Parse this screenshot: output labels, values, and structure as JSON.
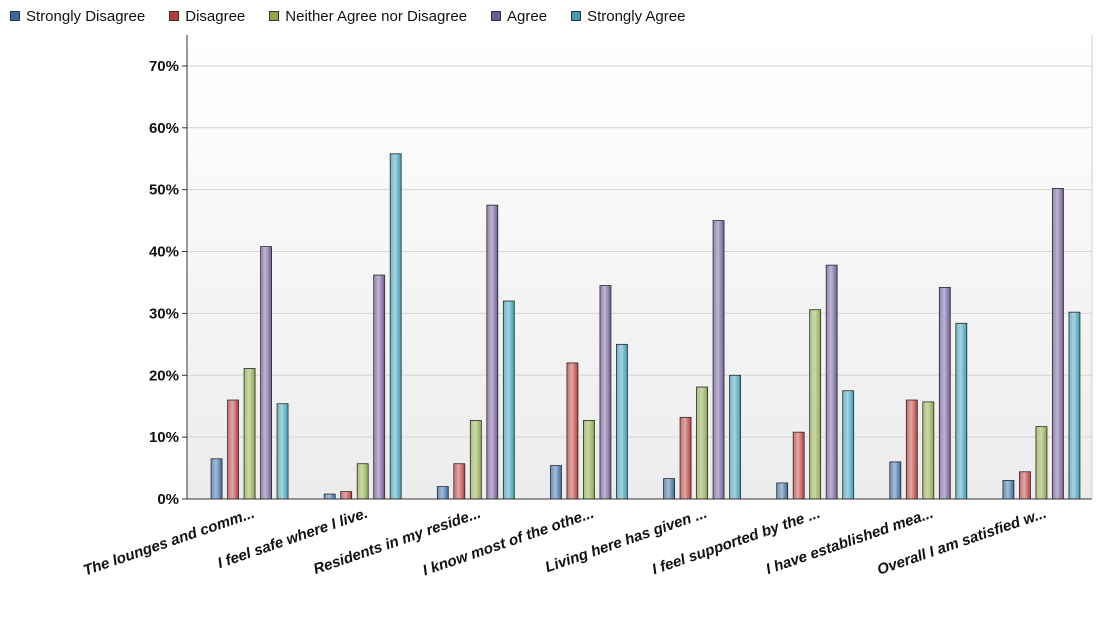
{
  "chart_data": {
    "type": "bar",
    "categories": [
      "The lounges and comm...",
      "I feel safe where I live.",
      "Residents in my reside...",
      "I know most of the othe...",
      "Living here has given ...",
      "I feel supported by the ...",
      "I have established mea...",
      "Overall I am satisfied w..."
    ],
    "series": [
      {
        "name": "Strongly Disagree",
        "color": "#3a6aa0",
        "values": [
          6.5,
          0.8,
          2.0,
          5.4,
          3.3,
          2.6,
          6.0,
          3.0
        ]
      },
      {
        "name": "Disagree",
        "color": "#b83c3c",
        "values": [
          16.0,
          1.2,
          5.7,
          22.0,
          13.2,
          10.8,
          16.0,
          4.4
        ]
      },
      {
        "name": "Neither Agree nor Disagree",
        "color": "#8ca848",
        "values": [
          21.1,
          5.7,
          12.7,
          12.7,
          18.1,
          30.6,
          15.7,
          11.7
        ]
      },
      {
        "name": "Agree",
        "color": "#6e5a96",
        "values": [
          40.8,
          36.2,
          47.5,
          34.5,
          45.0,
          37.8,
          34.2,
          50.2
        ]
      },
      {
        "name": "Strongly Agree",
        "color": "#3d9cb4",
        "values": [
          15.4,
          55.8,
          32.0,
          25.0,
          20.0,
          17.5,
          28.4,
          30.2
        ]
      }
    ],
    "y_ticks": [
      "0%",
      "10%",
      "20%",
      "30%",
      "40%",
      "50%",
      "60%",
      "70%"
    ],
    "ylim": [
      0,
      75
    ],
    "grid": true,
    "legend_position": "top"
  }
}
